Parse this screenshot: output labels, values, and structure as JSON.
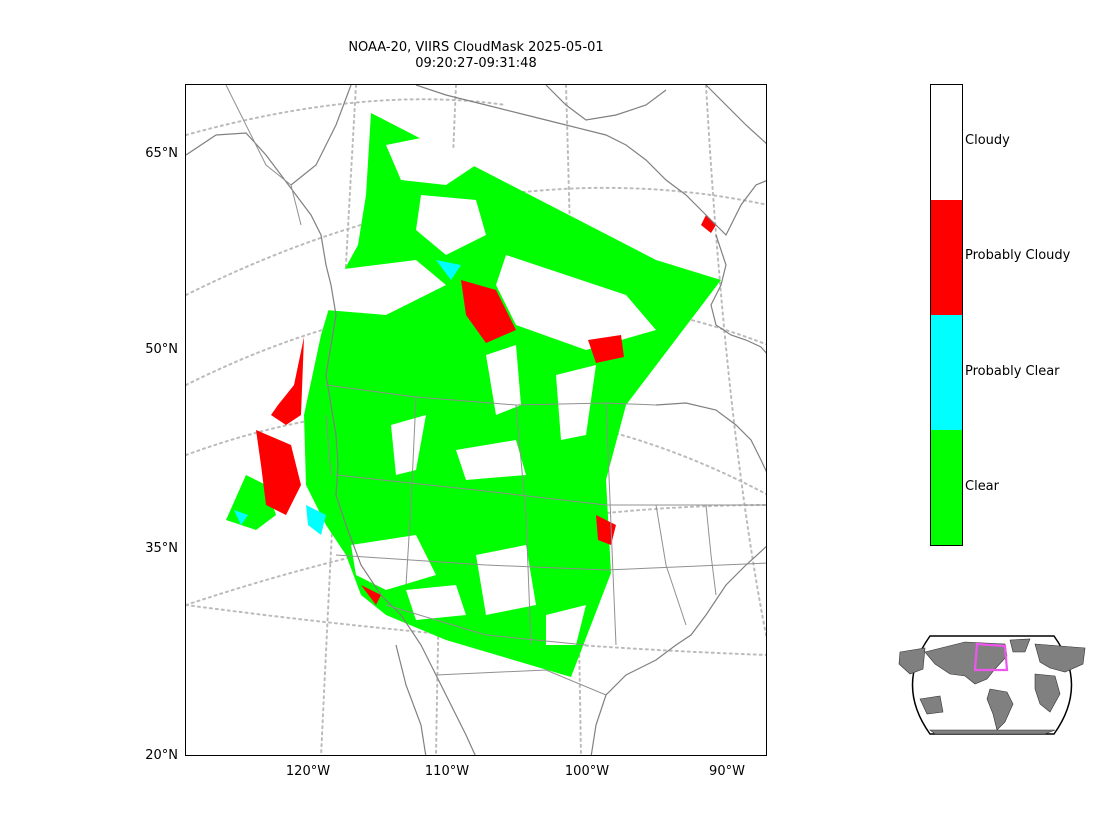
{
  "figure": {
    "title_line1": "NOAA-20, VIIRS CloudMask 2025-05-01",
    "title_line2": "09:20:27-09:31:48"
  },
  "axes": {
    "lat_ticks": [
      "65°N",
      "50°N",
      "35°N",
      "20°N"
    ],
    "lon_ticks": [
      "120°W",
      "110°W",
      "100°W",
      "90°W"
    ],
    "lat_range": [
      20,
      70
    ],
    "lon_range": [
      -129,
      -87
    ],
    "graticule": "dotted"
  },
  "colorbar": {
    "classes": [
      {
        "label": "Cloudy",
        "color": "#ffffff"
      },
      {
        "label": "Probably Cloudy",
        "color": "#ff0000"
      },
      {
        "label": "Probably Clear",
        "color": "#00ffff"
      },
      {
        "label": "Clear",
        "color": "#00ff00"
      }
    ]
  },
  "colors": {
    "coastline": "#808080",
    "graticule": "#bbbbbb",
    "inset_land": "#808080",
    "inset_box": "#ee55ee"
  }
}
